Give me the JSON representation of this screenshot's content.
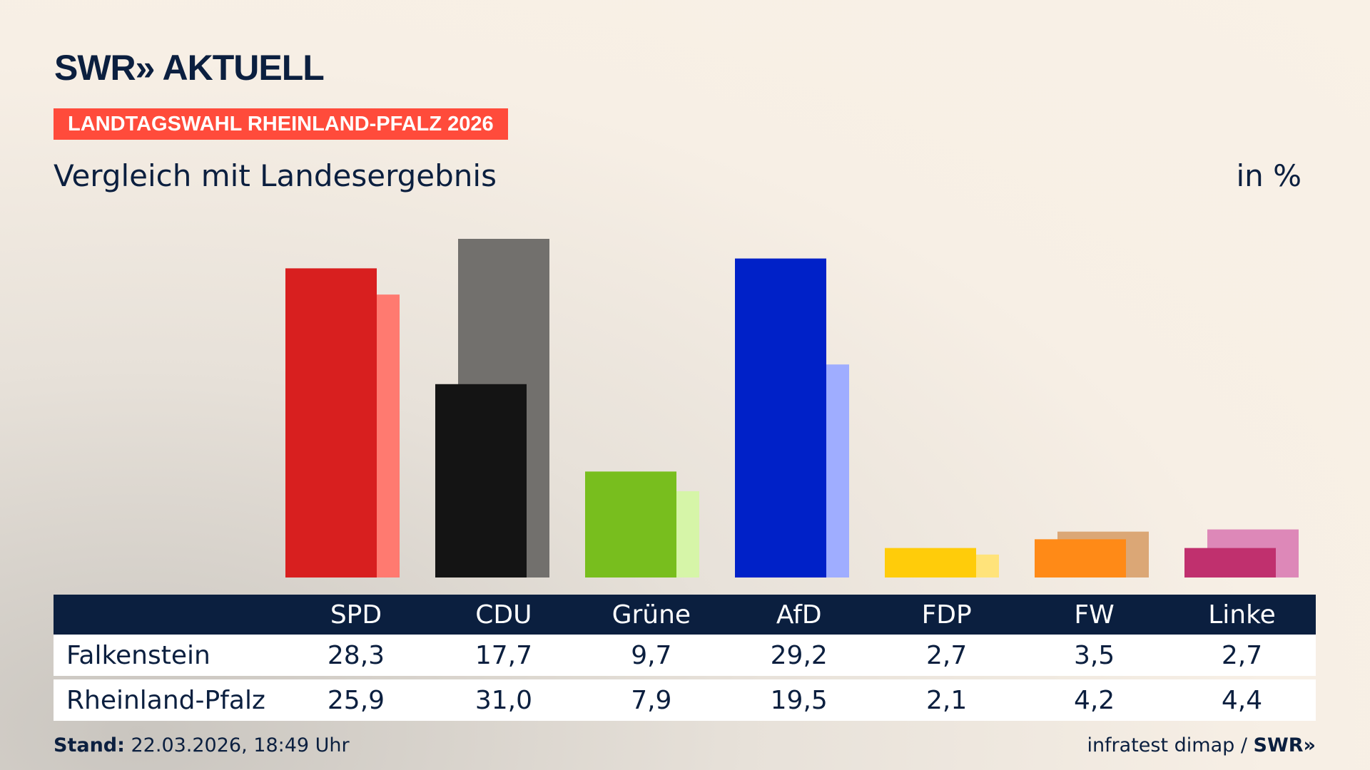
{
  "brand": {
    "logo": "SWR» AKTUELL"
  },
  "badge": "LANDTAGSWAHL RHEINLAND-PFALZ 2026",
  "subtitle": "Vergleich mit Landesergebnis",
  "unit": "in %",
  "chart_data": {
    "type": "bar",
    "categories": [
      "SPD",
      "CDU",
      "Grüne",
      "AfD",
      "FDP",
      "FW",
      "Linke"
    ],
    "series": [
      {
        "name": "Falkenstein",
        "values": [
          28.3,
          17.7,
          9.7,
          29.2,
          2.7,
          3.5,
          2.7
        ],
        "colors": [
          "#d81f1f",
          "#141414",
          "#78be1e",
          "#0021c8",
          "#ffcc0a",
          "#ff8a17",
          "#c0306e"
        ]
      },
      {
        "name": "Rheinland-Pfalz",
        "values": [
          25.9,
          31.0,
          7.9,
          19.5,
          2.1,
          4.2,
          4.4
        ],
        "colors": [
          "#ff7a70",
          "#72706d",
          "#d6f5a8",
          "#9fadff",
          "#ffe37a",
          "#dba776",
          "#dd88b8"
        ]
      }
    ],
    "ylim": [
      0,
      31
    ],
    "grid": false
  },
  "table": {
    "rows": [
      {
        "label": "Falkenstein",
        "values": [
          "28,3",
          "17,7",
          "9,7",
          "29,2",
          "2,7",
          "3,5",
          "2,7"
        ]
      },
      {
        "label": "Rheinland-Pfalz",
        "values": [
          "25,9",
          "31,0",
          "7,9",
          "19,5",
          "2,1",
          "4,2",
          "4,4"
        ]
      }
    ]
  },
  "footer": {
    "stand_label": "Stand:",
    "stand_value": " 22.03.2026, 18:49 Uhr",
    "source": "infratest dimap / ",
    "source_brand": "SWR»"
  }
}
